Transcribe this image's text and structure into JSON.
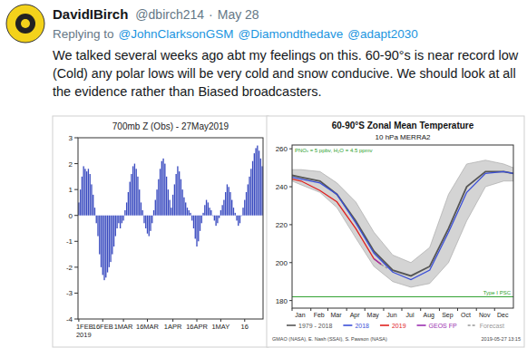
{
  "tweet": {
    "name": "DavidIBirch",
    "handle": "@dbirch214",
    "separator": "·",
    "date": "May 28",
    "replying_label": "Replying to",
    "replying_to": [
      "@JohnClarksonGSM",
      "@Diamondthedave",
      "@adapt2030"
    ],
    "text": [
      "We talked several weeks ago abt my feelings on this. 60-90°s is near record low",
      "(Cold) any polar lows will be very cold and snow conducive. We should look at all",
      "the evidence rather than Biased broadcasters."
    ]
  },
  "chart_data": [
    {
      "type": "bar",
      "title": "700mb Z (Obs) - 27May2019",
      "categories": [
        "1FEB 2019",
        null,
        null,
        null,
        null,
        null,
        null,
        null,
        null,
        null,
        null,
        null,
        null,
        null,
        null,
        "16FEB",
        null,
        null,
        null,
        null,
        null,
        null,
        null,
        null,
        null,
        null,
        null,
        null,
        "1MAR",
        null,
        null,
        null,
        null,
        null,
        null,
        null,
        null,
        null,
        null,
        null,
        null,
        null,
        null,
        "16MAR",
        null,
        null,
        null,
        null,
        null,
        null,
        null,
        null,
        null,
        null,
        null,
        null,
        null,
        null,
        null,
        "1APR",
        null,
        null,
        null,
        null,
        null,
        null,
        null,
        null,
        null,
        null,
        null,
        null,
        null,
        null,
        "16APR",
        null,
        null,
        null,
        null,
        null,
        null,
        null,
        null,
        null,
        null,
        null,
        null,
        null,
        null,
        "1MAY",
        null,
        null,
        null,
        null,
        null,
        null,
        null,
        null,
        null,
        null,
        null,
        null,
        null,
        null,
        "16",
        null,
        null,
        null,
        null,
        null,
        null,
        null,
        null,
        null,
        null,
        null
      ],
      "values": [
        0.5,
        1.0,
        1.5,
        1.9,
        1.8,
        1.7,
        1.8,
        1.6,
        1.2,
        0.8,
        0.3,
        -0.3,
        -0.8,
        -1.5,
        -2.0,
        -2.3,
        -2.5,
        -2.4,
        -2.2,
        -2.0,
        -1.8,
        -1.5,
        -1.2,
        -0.8,
        -0.5,
        -0.3,
        -0.5,
        -0.3,
        -0.2,
        0.2,
        0.5,
        0.9,
        1.3,
        1.6,
        1.9,
        2.0,
        1.8,
        1.5,
        1.0,
        0.5,
        0.2,
        -0.3,
        -0.5,
        -0.7,
        -0.8,
        -0.6,
        -0.3,
        0.2,
        0.6,
        1.0,
        1.4,
        1.8,
        2.1,
        2.2,
        2.0,
        1.5,
        1.0,
        0.6,
        0.3,
        0.8,
        1.2,
        1.6,
        1.9,
        1.7,
        1.4,
        1.0,
        0.7,
        0.5,
        0.3,
        0.2,
        0.1,
        -0.2,
        -0.5,
        -0.9,
        -1.2,
        -1.0,
        -0.6,
        -0.3,
        0.1,
        0.4,
        0.6,
        0.5,
        0.3,
        0.2,
        0.0,
        -0.2,
        -0.4,
        -0.3,
        -0.1,
        0.2,
        0.4,
        0.6,
        0.9,
        1.2,
        1.1,
        0.9,
        0.6,
        0.3,
        0.1,
        -0.2,
        -0.4,
        -0.3,
        0.0,
        0.3,
        0.6,
        0.9,
        1.2,
        1.5,
        1.8,
        2.1,
        2.4,
        2.6,
        2.7,
        2.5,
        2.2,
        1.9
      ],
      "color": "#3b4cc0",
      "ylim": [
        -4,
        3
      ],
      "yticks": [
        -4,
        -3,
        -2,
        -1,
        0,
        1,
        2,
        3
      ],
      "grid": false
    },
    {
      "type": "line",
      "title": "60-90°S Zonal Mean Temperature",
      "subtitle": "10 hPa   MERRA2",
      "note": "PNOₓ = 5 ppbv, H₂O = 4.5 ppmv",
      "credits": "GMAO (NASA), E. Nash (SSAI), S. Pawson (NASA)",
      "timestamp": "2019-05-27 13:15",
      "xlim": [
        0,
        365
      ],
      "xticks": [
        {
          "value": 0,
          "label": "Jan"
        },
        {
          "value": 31,
          "label": "Feb"
        },
        {
          "value": 59,
          "label": "Mar"
        },
        {
          "value": 90,
          "label": "Apr"
        },
        {
          "value": 120,
          "label": "May"
        },
        {
          "value": 151,
          "label": "Jun"
        },
        {
          "value": 181,
          "label": "Jul"
        },
        {
          "value": 212,
          "label": "Aug"
        },
        {
          "value": 243,
          "label": "Sep"
        },
        {
          "value": 273,
          "label": "Oct"
        },
        {
          "value": 304,
          "label": "Nov"
        },
        {
          "value": 334,
          "label": "Dec"
        }
      ],
      "ylim": [
        176,
        262
      ],
      "yticks": [
        180,
        200,
        220,
        240,
        260
      ],
      "grid": false,
      "legend": "bottom",
      "annotations": [
        {
          "text": "Type I PSC",
          "value": 182,
          "color": "#2ca02c"
        }
      ],
      "series": [
        {
          "name": "1979 - 2018",
          "color": "#555555",
          "x": [
            0,
            15,
            46,
            74,
            105,
            135,
            166,
            196,
            227,
            258,
            288,
            319,
            349,
            365
          ],
          "values": [
            246,
            245,
            243,
            236,
            222,
            206,
            196,
            193,
            198,
            218,
            240,
            248,
            248,
            247
          ],
          "range_low": [
            243,
            241,
            237,
            229,
            213,
            198,
            190,
            187,
            189,
            200,
            222,
            240,
            243,
            243
          ],
          "range_high": [
            249,
            249,
            248,
            242,
            232,
            216,
            204,
            200,
            208,
            236,
            252,
            254,
            252,
            250
          ]
        },
        {
          "name": "2018",
          "color": "#3b4fd8",
          "x": [
            0,
            15,
            46,
            74,
            105,
            135,
            166,
            196,
            227,
            258,
            288,
            319,
            349,
            365
          ],
          "values": [
            245,
            244,
            242,
            236,
            221,
            205,
            195,
            191,
            196,
            216,
            237,
            247,
            248,
            247
          ]
        },
        {
          "name": "2019",
          "color": "#e0211f",
          "x": [
            0,
            15,
            46,
            74,
            105,
            135,
            147
          ],
          "values": [
            244,
            243,
            238,
            232,
            218,
            202,
            199
          ]
        },
        {
          "name": "GEOS FP",
          "color": "#9b30b0",
          "x": [
            135,
            147
          ],
          "values": [
            202,
            199
          ]
        },
        {
          "name": "Forecast",
          "color": "#999999",
          "line_style": "dashed",
          "x": [
            147,
            157
          ],
          "values": [
            199,
            197
          ]
        }
      ]
    }
  ]
}
